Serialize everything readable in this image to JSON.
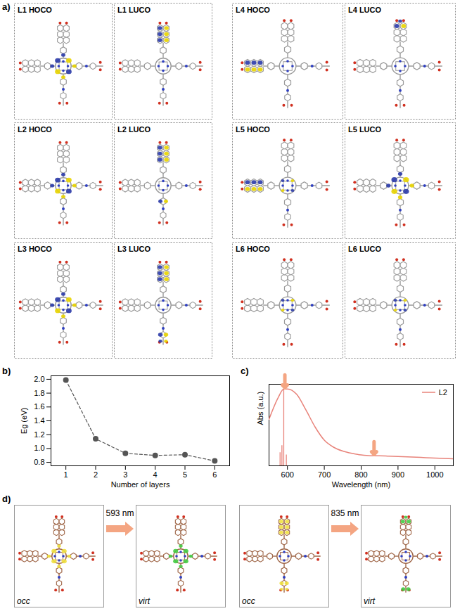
{
  "panel_a": {
    "label": "a)",
    "boxes": [
      "L1 HOCO",
      "L1 LUCO",
      "L2 HOCO",
      "L2 LUCO",
      "L3 HOCO",
      "L3 LUCO",
      "L4 HOCO",
      "L4 LUCO",
      "L5 HOCO",
      "L5 LUCO",
      "L6 HOCO",
      "L6 LUCO"
    ]
  },
  "chart_data": [
    {
      "panel": "b)",
      "type": "line",
      "x_label": "Number of layers",
      "y_label": "Eg (eV)",
      "x": [
        1,
        2,
        3,
        4,
        5,
        6
      ],
      "values": [
        1.99,
        1.14,
        0.93,
        0.9,
        0.91,
        0.82
      ],
      "color": "#555555",
      "marker": "circle",
      "line_style": "dashed",
      "xlim": [
        0.5,
        6.5
      ],
      "xticks": [
        1,
        2,
        3,
        4,
        5,
        6
      ],
      "ylim": [
        0.75,
        2.05
      ],
      "yticks": [
        0.8,
        {
          "value": 1,
          "label": "1.0"
        },
        1.2,
        1.4,
        1.6,
        1.8,
        {
          "value": 2,
          "label": "2.0"
        }
      ],
      "grid": false
    },
    {
      "panel": "c)",
      "type": "line",
      "x_label": "Wavelength (nm)",
      "y_label": "Abs (a.u.)",
      "x": [
        550,
        575,
        590,
        600,
        625,
        650,
        675,
        700,
        725,
        750,
        775,
        800,
        825,
        850,
        875,
        900,
        925,
        950,
        975,
        1000,
        1025,
        1050
      ],
      "series": [
        {
          "name": "L2",
          "color": "#e8837a",
          "values": [
            0.6,
            0.88,
            0.99,
            0.99,
            0.92,
            0.72,
            0.5,
            0.33,
            0.24,
            0.19,
            0.16,
            0.14,
            0.13,
            0.13,
            0.125,
            0.12,
            0.115,
            0.11,
            0.105,
            0.1,
            0.095,
            0.09
          ]
        }
      ],
      "sticks": {
        "x": [
          580,
          585,
          590,
          597
        ],
        "values": [
          0.17,
          0.26,
          1.0,
          0.14
        ]
      },
      "highlight_x": [
        593,
        835
      ],
      "xlim": [
        550,
        1050
      ],
      "xticks": [
        600,
        700,
        800,
        900,
        1000
      ],
      "ylim": [
        0,
        1.05
      ],
      "yticks": [],
      "tick_labels": "x",
      "legend": "top-right",
      "grid": false
    }
  ],
  "panel_d": {
    "label": "d)",
    "transitions": [
      {
        "wavelength": "593 nm",
        "from": "occ",
        "to": "virt"
      },
      {
        "wavelength": "835 nm",
        "from": "occ",
        "to": "virt"
      }
    ]
  }
}
